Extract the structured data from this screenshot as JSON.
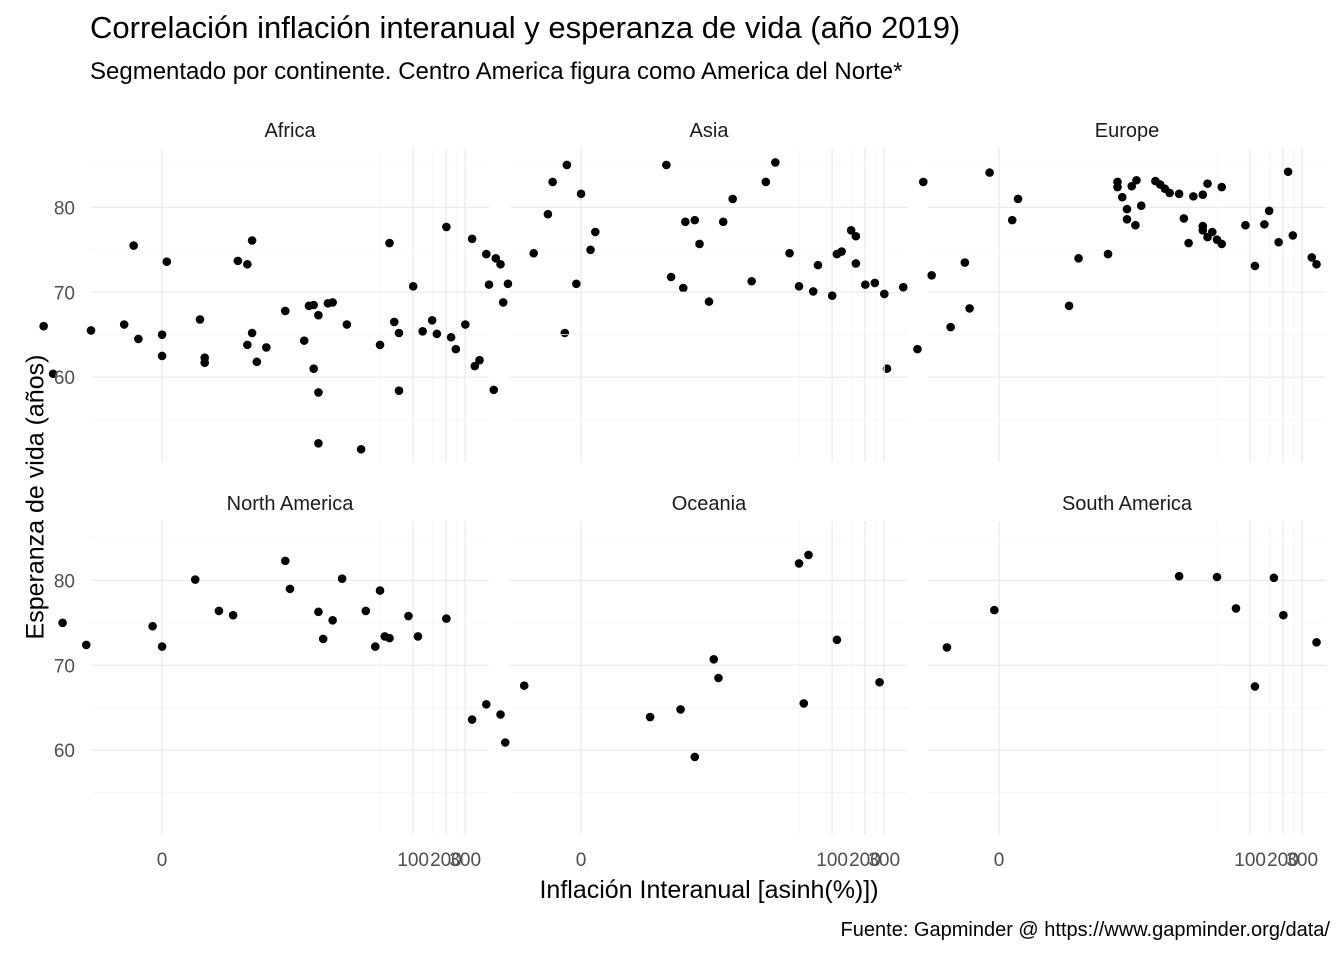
{
  "chart_data": {
    "type": "scatter",
    "title": "Correlación inflación interanual y esperanza de vida (año 2019)",
    "subtitle": "Segmentado por continente. Centro America figura como America del Norte*",
    "caption": "Fuente: Gapminder @ https://www.gapminder.org/data/",
    "xlabel": "Inflación Interanual [asinh(%)])",
    "ylabel": "Esperanza de vida (años)",
    "x_scale": "asinh",
    "x_ticks": [
      0,
      100,
      200,
      300
    ],
    "x_tick_labels": [
      "0",
      "100",
      "200",
      "300"
    ],
    "y_ticks": [
      60,
      70,
      80
    ],
    "y_tick_labels": [
      "60",
      "70",
      "80"
    ],
    "x_range_asinh": [
      -1.5,
      6.9
    ],
    "ylim": [
      50,
      87
    ],
    "grid": true,
    "legend": "none",
    "facets": [
      {
        "label": "Africa",
        "points": [
          [
            -2.5,
            66.0
          ],
          [
            -2.3,
            60.4
          ],
          [
            -1.5,
            65.5
          ],
          [
            -0.8,
            66.2
          ],
          [
            -0.6,
            75.5
          ],
          [
            -0.5,
            64.5
          ],
          [
            0.0,
            62.5
          ],
          [
            0.0,
            65.0
          ],
          [
            0.1,
            73.6
          ],
          [
            0.8,
            66.8
          ],
          [
            0.9,
            62.3
          ],
          [
            0.9,
            61.7
          ],
          [
            1.6,
            73.7
          ],
          [
            1.8,
            73.3
          ],
          [
            1.9,
            76.1
          ],
          [
            1.8,
            63.8
          ],
          [
            1.9,
            65.2
          ],
          [
            2.0,
            61.8
          ],
          [
            2.2,
            63.5
          ],
          [
            2.6,
            67.8
          ],
          [
            3.0,
            64.3
          ],
          [
            3.1,
            68.4
          ],
          [
            3.2,
            68.5
          ],
          [
            3.2,
            61.0
          ],
          [
            3.3,
            67.3
          ],
          [
            3.3,
            58.2
          ],
          [
            3.3,
            52.2
          ],
          [
            3.5,
            68.7
          ],
          [
            3.6,
            68.8
          ],
          [
            3.9,
            66.2
          ],
          [
            4.2,
            51.5
          ],
          [
            4.6,
            63.8
          ],
          [
            4.8,
            75.8
          ],
          [
            4.9,
            66.5
          ],
          [
            5.0,
            65.2
          ],
          [
            5.0,
            58.4
          ],
          [
            5.3,
            70.7
          ],
          [
            5.5,
            65.4
          ],
          [
            5.7,
            66.7
          ],
          [
            5.8,
            65.1
          ],
          [
            6.0,
            77.7
          ],
          [
            6.1,
            64.7
          ],
          [
            6.2,
            63.3
          ],
          [
            6.4,
            66.2
          ],
          [
            6.6,
            61.3
          ],
          [
            6.7,
            62.0
          ],
          [
            6.9,
            70.9
          ],
          [
            7.0,
            58.5
          ],
          [
            7.2,
            68.8
          ],
          [
            7.3,
            71.0
          ],
          [
            8.5,
            65.2
          ],
          [
            11.0,
            70.5
          ],
          [
            15.3,
            61.0
          ]
        ]
      },
      {
        "label": "Asia",
        "points": [
          [
            -2.3,
            76.3
          ],
          [
            -2.0,
            74.5
          ],
          [
            -1.8,
            74.0
          ],
          [
            -1.7,
            73.3
          ],
          [
            -1.0,
            74.6
          ],
          [
            -0.7,
            79.2
          ],
          [
            -0.6,
            83.0
          ],
          [
            -0.3,
            85.0
          ],
          [
            -0.1,
            71.0
          ],
          [
            0.0,
            81.6
          ],
          [
            0.2,
            75.0
          ],
          [
            0.3,
            77.1
          ],
          [
            1.8,
            85.0
          ],
          [
            1.9,
            71.8
          ],
          [
            2.2,
            78.3
          ],
          [
            2.4,
            78.5
          ],
          [
            2.5,
            75.7
          ],
          [
            2.7,
            68.9
          ],
          [
            3.0,
            78.3
          ],
          [
            3.2,
            81.0
          ],
          [
            3.6,
            71.3
          ],
          [
            3.9,
            83.0
          ],
          [
            4.1,
            85.3
          ],
          [
            4.4,
            74.6
          ],
          [
            4.6,
            70.7
          ],
          [
            4.9,
            70.1
          ],
          [
            5.0,
            73.2
          ],
          [
            5.3,
            69.6
          ],
          [
            5.4,
            74.5
          ],
          [
            5.5,
            74.8
          ],
          [
            5.7,
            77.3
          ],
          [
            5.8,
            76.6
          ],
          [
            5.8,
            73.4
          ],
          [
            6.0,
            70.9
          ],
          [
            6.2,
            71.1
          ],
          [
            6.4,
            69.8
          ],
          [
            6.8,
            70.6
          ],
          [
            7.1,
            63.3
          ],
          [
            7.4,
            72.0
          ],
          [
            7.8,
            65.9
          ],
          [
            8.1,
            73.5
          ],
          [
            8.2,
            68.1
          ],
          [
            9.1,
            78.5
          ],
          [
            10.3,
            68.4
          ],
          [
            10.5,
            74.0
          ],
          [
            11.7,
            77.9
          ]
        ]
      },
      {
        "label": "Europe",
        "points": [
          [
            -1.6,
            83.0
          ],
          [
            -0.2,
            84.1
          ],
          [
            0.4,
            81.0
          ],
          [
            2.3,
            74.5
          ],
          [
            2.5,
            83.0
          ],
          [
            2.5,
            82.4
          ],
          [
            2.6,
            81.2
          ],
          [
            2.7,
            79.8
          ],
          [
            2.7,
            78.6
          ],
          [
            2.8,
            82.5
          ],
          [
            2.9,
            83.2
          ],
          [
            3.0,
            80.2
          ],
          [
            3.3,
            83.1
          ],
          [
            3.4,
            82.7
          ],
          [
            3.5,
            82.2
          ],
          [
            3.6,
            81.7
          ],
          [
            3.8,
            81.6
          ],
          [
            3.9,
            78.7
          ],
          [
            4.0,
            75.8
          ],
          [
            4.1,
            81.3
          ],
          [
            4.3,
            81.5
          ],
          [
            4.3,
            77.8
          ],
          [
            4.3,
            77.3
          ],
          [
            4.4,
            76.5
          ],
          [
            4.4,
            82.8
          ],
          [
            4.5,
            77.1
          ],
          [
            4.6,
            76.2
          ],
          [
            4.7,
            75.7
          ],
          [
            4.7,
            82.4
          ],
          [
            5.2,
            77.9
          ],
          [
            5.4,
            73.1
          ],
          [
            5.6,
            78.0
          ],
          [
            5.7,
            79.6
          ],
          [
            5.9,
            75.9
          ],
          [
            6.1,
            84.2
          ],
          [
            6.2,
            76.7
          ],
          [
            6.6,
            74.1
          ],
          [
            6.7,
            73.3
          ],
          [
            7.6,
            75.5
          ],
          [
            8.3,
            74.1
          ],
          [
            8.2,
            73.9
          ]
        ]
      },
      {
        "label": "North America",
        "points": [
          [
            -2.1,
            75.0
          ],
          [
            -1.6,
            72.4
          ],
          [
            -0.2,
            74.6
          ],
          [
            0.0,
            72.2
          ],
          [
            0.7,
            80.1
          ],
          [
            1.2,
            76.4
          ],
          [
            1.5,
            75.9
          ],
          [
            2.6,
            82.3
          ],
          [
            2.7,
            79.0
          ],
          [
            3.3,
            76.3
          ],
          [
            3.4,
            73.1
          ],
          [
            3.6,
            75.3
          ],
          [
            3.8,
            80.2
          ],
          [
            4.3,
            76.4
          ],
          [
            4.5,
            72.2
          ],
          [
            4.6,
            78.8
          ],
          [
            4.7,
            73.4
          ],
          [
            4.8,
            73.2
          ],
          [
            5.2,
            75.8
          ],
          [
            5.4,
            73.4
          ],
          [
            6.0,
            75.5
          ],
          [
            10.3,
            63.9
          ]
        ]
      },
      {
        "label": "Oceania",
        "points": [
          [
            -2.3,
            63.6
          ],
          [
            -2.0,
            65.4
          ],
          [
            -1.7,
            64.2
          ],
          [
            -1.6,
            60.9
          ],
          [
            -1.2,
            67.6
          ],
          [
            2.1,
            64.8
          ],
          [
            2.4,
            59.2
          ],
          [
            2.8,
            70.7
          ],
          [
            2.9,
            68.5
          ],
          [
            4.6,
            82.0
          ],
          [
            4.7,
            65.5
          ],
          [
            4.8,
            83.0
          ],
          [
            5.4,
            73.0
          ],
          [
            6.3,
            68.0
          ]
        ]
      },
      {
        "label": "South America",
        "points": [
          [
            -1.1,
            72.1
          ],
          [
            -0.1,
            76.5
          ],
          [
            3.8,
            80.5
          ],
          [
            4.6,
            80.4
          ],
          [
            5.0,
            76.7
          ],
          [
            5.4,
            67.5
          ],
          [
            5.8,
            80.3
          ],
          [
            6.0,
            75.9
          ],
          [
            6.7,
            72.7
          ],
          [
            8.0,
            77.6
          ],
          [
            13.9,
            76.7
          ]
        ]
      }
    ]
  }
}
